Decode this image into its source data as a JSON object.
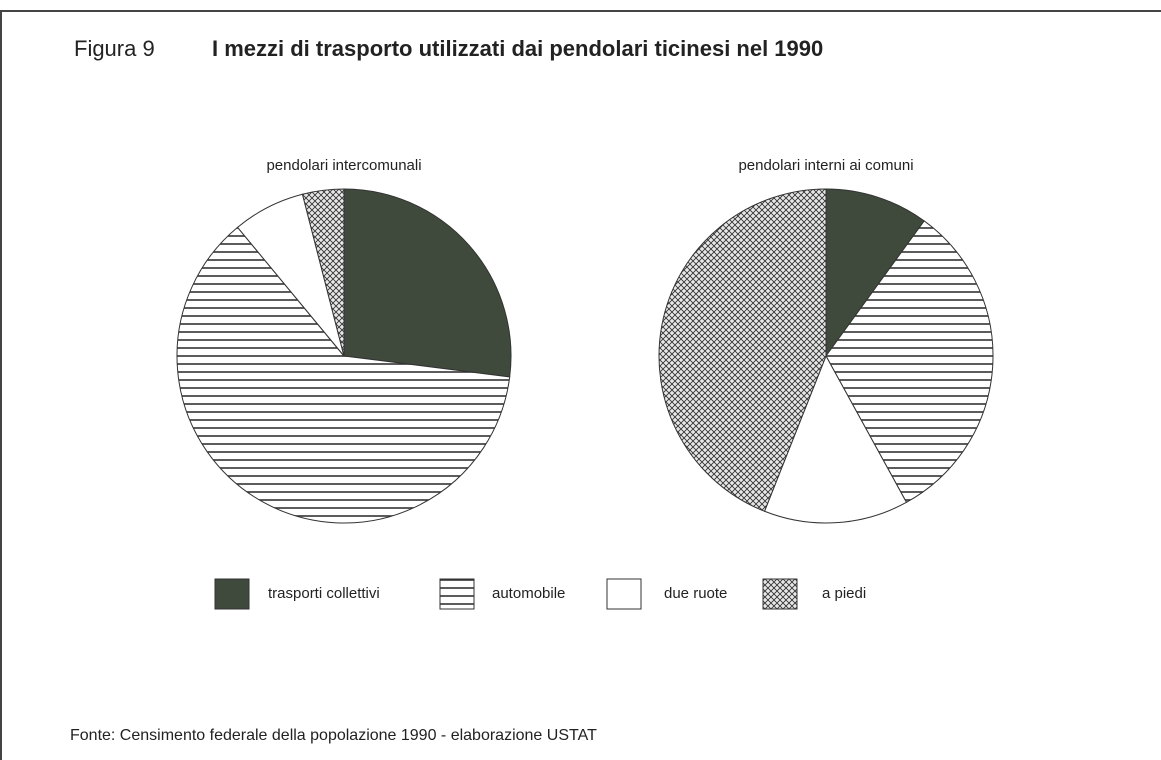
{
  "figure_label": "Figura 9",
  "title": "I mezzi di trasporto utilizzati dai pendolari ticinesi nel 1990",
  "source": "Fonte: Censimento federale della popolazione 1990 - elaborazione USTAT",
  "chart_data": [
    {
      "type": "pie",
      "title": "pendolari intercomunali",
      "categories": [
        "trasporti collettivi",
        "automobile",
        "due ruote",
        "a piedi"
      ],
      "values": [
        27,
        62,
        7,
        4
      ],
      "colors": [
        "#3f4a3d",
        "horizontal-lines",
        "#ffffff",
        "crosshatch"
      ]
    },
    {
      "type": "pie",
      "title": "pendolari interni ai comuni",
      "categories": [
        "trasporti collettivi",
        "automobile",
        "due ruote",
        "a piedi"
      ],
      "values": [
        10,
        32,
        14,
        44
      ],
      "colors": [
        "#3f4a3d",
        "horizontal-lines",
        "#ffffff",
        "crosshatch"
      ]
    }
  ]
}
